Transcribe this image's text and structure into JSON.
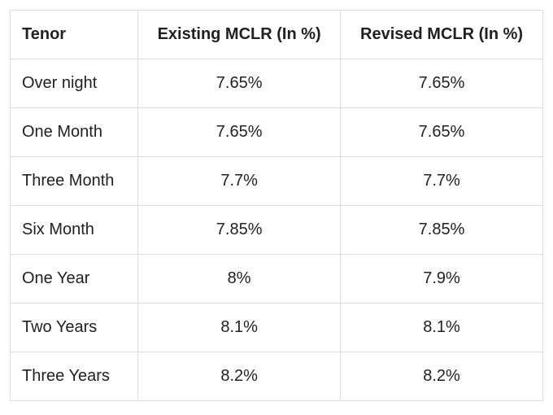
{
  "table": {
    "type": "table",
    "columns": [
      "Tenor",
      "Existing MCLR (In %)",
      "Revised MCLR (In %)"
    ],
    "rows": [
      [
        "Over night",
        "7.65%",
        "7.65%"
      ],
      [
        "One Month",
        "7.65%",
        "7.65%"
      ],
      [
        "Three Month",
        "7.7%",
        "7.7%"
      ],
      [
        "Six Month",
        "7.85%",
        "7.85%"
      ],
      [
        "One Year",
        "8%",
        "7.9%"
      ],
      [
        "Two Years",
        "8.1%",
        "8.1%"
      ],
      [
        "Three Years",
        "8.2%",
        "8.2%"
      ]
    ],
    "border_color": "#dddddd",
    "background_color": "#ffffff",
    "text_color": "#212121",
    "header_fontsize": 20,
    "cell_fontsize": 20,
    "column_widths": [
      "24%",
      "38%",
      "38%"
    ],
    "column_align": [
      "left",
      "center",
      "center"
    ]
  }
}
